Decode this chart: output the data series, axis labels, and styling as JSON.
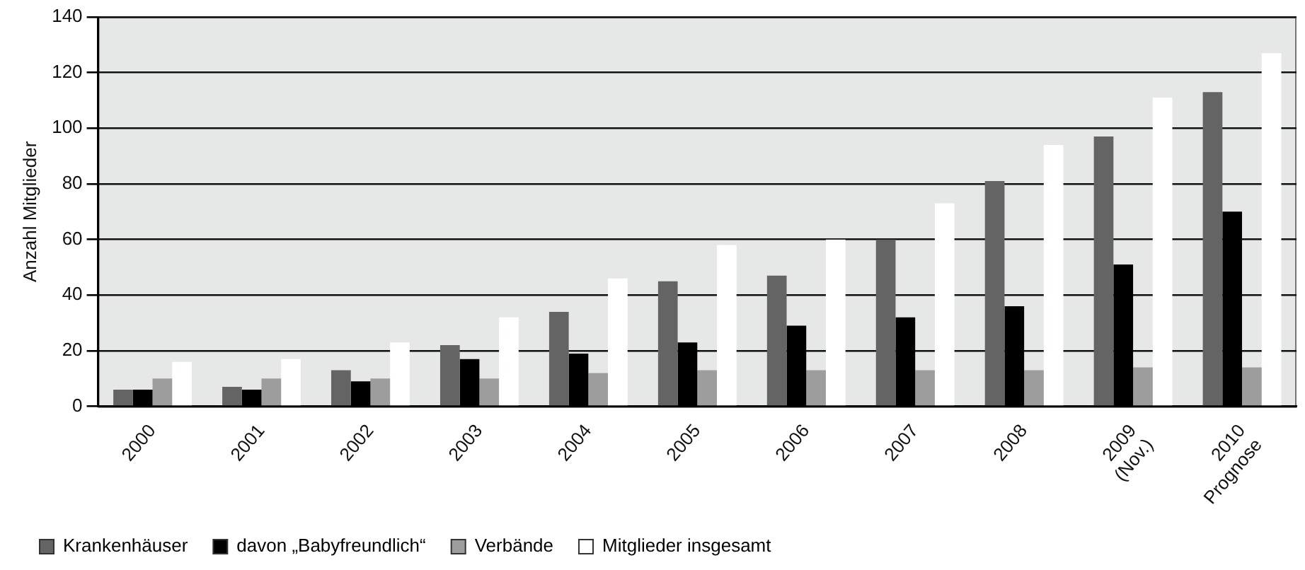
{
  "chart_data": {
    "type": "bar",
    "ylabel": "Anzahl Mitglieder",
    "categories": [
      "2000",
      "2001",
      "2002",
      "2003",
      "2004",
      "2005",
      "2006",
      "2007",
      "2008",
      "2009\n(Nov.)",
      "2010\nPrognose"
    ],
    "series": [
      {
        "name": "Krankenhäuser",
        "color": "#646464",
        "values": [
          6,
          7,
          13,
          22,
          34,
          45,
          47,
          60,
          81,
          97,
          113
        ]
      },
      {
        "name": "davon „Babyfreundlich“",
        "color": "#000000",
        "values": [
          6,
          6,
          9,
          17,
          19,
          23,
          29,
          32,
          36,
          51,
          70
        ]
      },
      {
        "name": "Verbände",
        "color": "#9d9d9d",
        "values": [
          10,
          10,
          10,
          10,
          12,
          13,
          13,
          13,
          13,
          14,
          14
        ]
      },
      {
        "name": "Mitglieder insgesamt",
        "color": "#ffffff",
        "values": [
          16,
          17,
          23,
          32,
          46,
          58,
          60,
          73,
          94,
          111,
          127
        ]
      }
    ],
    "ylim": [
      0,
      140
    ],
    "yticks": [
      0,
      20,
      40,
      60,
      80,
      100,
      120,
      140
    ],
    "grid": "y",
    "legend": "bottom left"
  }
}
